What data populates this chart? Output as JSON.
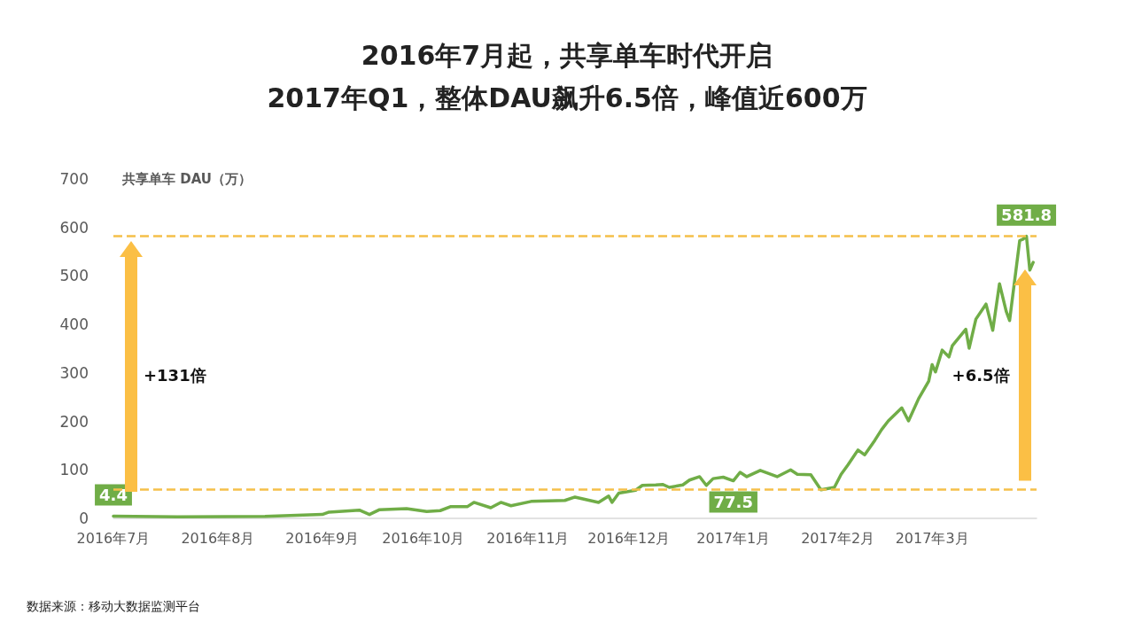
{
  "chart_data": {
    "type": "line",
    "title": "2016年7月起，共享单车时代开启",
    "subtitle": "2017年Q1，整体DAU飙升6.5倍，峰值近600万",
    "ylabel": "共享单车 DAU（万）",
    "x": [
      "2016-07-01",
      "2016-07-20",
      "2016-08-15",
      "2016-09-01",
      "2016-09-03",
      "2016-09-12",
      "2016-09-15",
      "2016-09-18",
      "2016-09-26",
      "2016-10-02",
      "2016-10-06",
      "2016-10-09",
      "2016-10-14",
      "2016-10-16",
      "2016-10-21",
      "2016-10-24",
      "2016-10-27",
      "2016-11-02",
      "2016-11-12",
      "2016-11-15",
      "2016-11-22",
      "2016-11-25",
      "2016-11-26",
      "2016-11-28",
      "2016-12-03",
      "2016-12-05",
      "2016-12-09",
      "2016-12-11",
      "2016-12-13",
      "2016-12-17",
      "2016-12-19",
      "2016-12-22",
      "2016-12-24",
      "2016-12-26",
      "2016-12-29",
      "2017-01-01",
      "2017-01-03",
      "2017-01-05",
      "2017-01-09",
      "2017-01-14",
      "2017-01-18",
      "2017-01-20",
      "2017-01-24",
      "2017-01-27",
      "2017-01-31",
      "2017-02-02",
      "2017-02-04",
      "2017-02-07",
      "2017-02-09",
      "2017-02-12",
      "2017-02-14",
      "2017-02-16",
      "2017-02-20",
      "2017-02-22",
      "2017-02-25",
      "2017-02-28",
      "2017-03-01",
      "2017-03-02",
      "2017-03-04",
      "2017-03-06",
      "2017-03-07",
      "2017-03-11",
      "2017-03-12",
      "2017-03-14",
      "2017-03-17",
      "2017-03-19",
      "2017-03-21",
      "2017-03-23",
      "2017-03-24",
      "2017-03-27",
      "2017-03-28",
      "2017-03-29",
      "2017-03-30",
      "2017-03-31"
    ],
    "series": [
      {
        "color": "#70ad47",
        "values": [
          4.4,
          3,
          4,
          8,
          13,
          17,
          8,
          18,
          20,
          14,
          16,
          24,
          24,
          33,
          22,
          33,
          26,
          35,
          37,
          44,
          33,
          46,
          33,
          52,
          58,
          68,
          69,
          70,
          64,
          69,
          79,
          86,
          68,
          82,
          85,
          77.5,
          95,
          86,
          99,
          86,
          100,
          91,
          90,
          59,
          64,
          91,
          110,
          141,
          131,
          161,
          183,
          201,
          228,
          201,
          247,
          283,
          317,
          302,
          347,
          333,
          356,
          390,
          351,
          411,
          442,
          388,
          484,
          427,
          408,
          573,
          576,
          581.8,
          512,
          528
        ],
        "value_labels": [
          "4.4",
          null,
          null,
          null,
          null,
          null,
          null,
          null,
          null,
          null,
          null,
          null,
          null,
          null,
          null,
          null,
          null,
          null,
          null,
          null,
          null,
          null,
          null,
          null,
          null,
          null,
          null,
          null,
          null,
          null,
          null,
          null,
          null,
          null,
          null,
          "77.5",
          null,
          null,
          null,
          null,
          null,
          null,
          null,
          null,
          null,
          null,
          null,
          null,
          null,
          null,
          null,
          null,
          null,
          null,
          null,
          null,
          null,
          null,
          null,
          null,
          null,
          null,
          null,
          null,
          null,
          null,
          null,
          null,
          null,
          null,
          null,
          "581.8",
          null,
          null
        ]
      }
    ],
    "xlim": [
      "2016-07-01",
      "2017-04-01"
    ],
    "xticks": [
      {
        "value": "2016-07-01",
        "label": "2016年7月"
      },
      {
        "value": "2016-08-01",
        "label": "2016年8月"
      },
      {
        "value": "2016-09-01",
        "label": "2016年9月"
      },
      {
        "value": "2016-10-01",
        "label": "2016年10月"
      },
      {
        "value": "2016-11-01",
        "label": "2016年11月"
      },
      {
        "value": "2016-12-01",
        "label": "2016年12月"
      },
      {
        "value": "2017-01-01",
        "label": "2017年1月"
      },
      {
        "value": "2017-02-01",
        "label": "2017年2月"
      },
      {
        "value": "2017-03-01",
        "label": "2017年3月"
      }
    ],
    "ylim": [
      0,
      700
    ],
    "yticks": [
      0,
      100,
      200,
      300,
      400,
      500,
      600,
      700
    ],
    "grid": false,
    "marker": "none",
    "line_style": "solid",
    "ref_lines": [
      {
        "axis": "y",
        "value": 581.8,
        "color": "#f5c04a",
        "line_style": "dashed"
      },
      {
        "axis": "y",
        "value": 59,
        "color": "#f5c04a",
        "line_style": "dashed"
      }
    ],
    "annotations": [
      "+131倍",
      "+6.5倍",
      "数据来源：移动大数据监测平台"
    ]
  }
}
